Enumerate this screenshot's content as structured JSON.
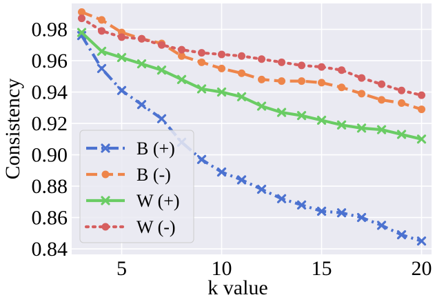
{
  "chart_data": {
    "type": "line",
    "title": "",
    "xlabel": "k value",
    "ylabel": "Consistency",
    "xlim": [
      2.5,
      20.5
    ],
    "ylim": [
      0.8365,
      0.9965
    ],
    "x_ticks": [
      5,
      10,
      15,
      20
    ],
    "y_ticks": [
      0.84,
      0.86,
      0.88,
      0.9,
      0.92,
      0.94,
      0.96,
      0.98
    ],
    "y_tick_labels": [
      "0.84",
      "0.86",
      "0.88",
      "0.90",
      "0.92",
      "0.94",
      "0.96",
      "0.98"
    ],
    "x_tick_labels": [
      "5",
      "10",
      "15",
      "20"
    ],
    "grid": true,
    "legend_position": "lower-left",
    "x": [
      3,
      4,
      5,
      6,
      7,
      8,
      9,
      10,
      11,
      12,
      13,
      14,
      15,
      16,
      17,
      18,
      19,
      20
    ],
    "series": [
      {
        "name": "B (+)",
        "color": "#4c72d0",
        "line_style": "dash-dot",
        "marker": "x",
        "values": [
          0.976,
          0.955,
          0.941,
          0.932,
          0.923,
          0.908,
          0.897,
          0.889,
          0.884,
          0.878,
          0.872,
          0.868,
          0.864,
          0.863,
          0.86,
          0.855,
          0.849,
          0.845
        ]
      },
      {
        "name": "B (-)",
        "color": "#ee854a",
        "line_style": "dashed",
        "marker": "circle",
        "values": [
          0.991,
          0.986,
          0.978,
          0.974,
          0.971,
          0.963,
          0.959,
          0.955,
          0.952,
          0.948,
          0.947,
          0.947,
          0.946,
          0.943,
          0.939,
          0.935,
          0.933,
          0.929
        ]
      },
      {
        "name": "W (+)",
        "color": "#6acc64",
        "line_style": "solid",
        "marker": "x",
        "values": [
          0.978,
          0.966,
          0.962,
          0.958,
          0.954,
          0.948,
          0.942,
          0.94,
          0.937,
          0.931,
          0.927,
          0.925,
          0.922,
          0.919,
          0.917,
          0.916,
          0.913,
          0.91
        ]
      },
      {
        "name": "W (-)",
        "color": "#d65f5f",
        "line_style": "dotted",
        "marker": "circle",
        "values": [
          0.987,
          0.979,
          0.975,
          0.974,
          0.97,
          0.967,
          0.965,
          0.964,
          0.963,
          0.961,
          0.959,
          0.957,
          0.956,
          0.954,
          0.949,
          0.945,
          0.941,
          0.938
        ]
      }
    ]
  }
}
